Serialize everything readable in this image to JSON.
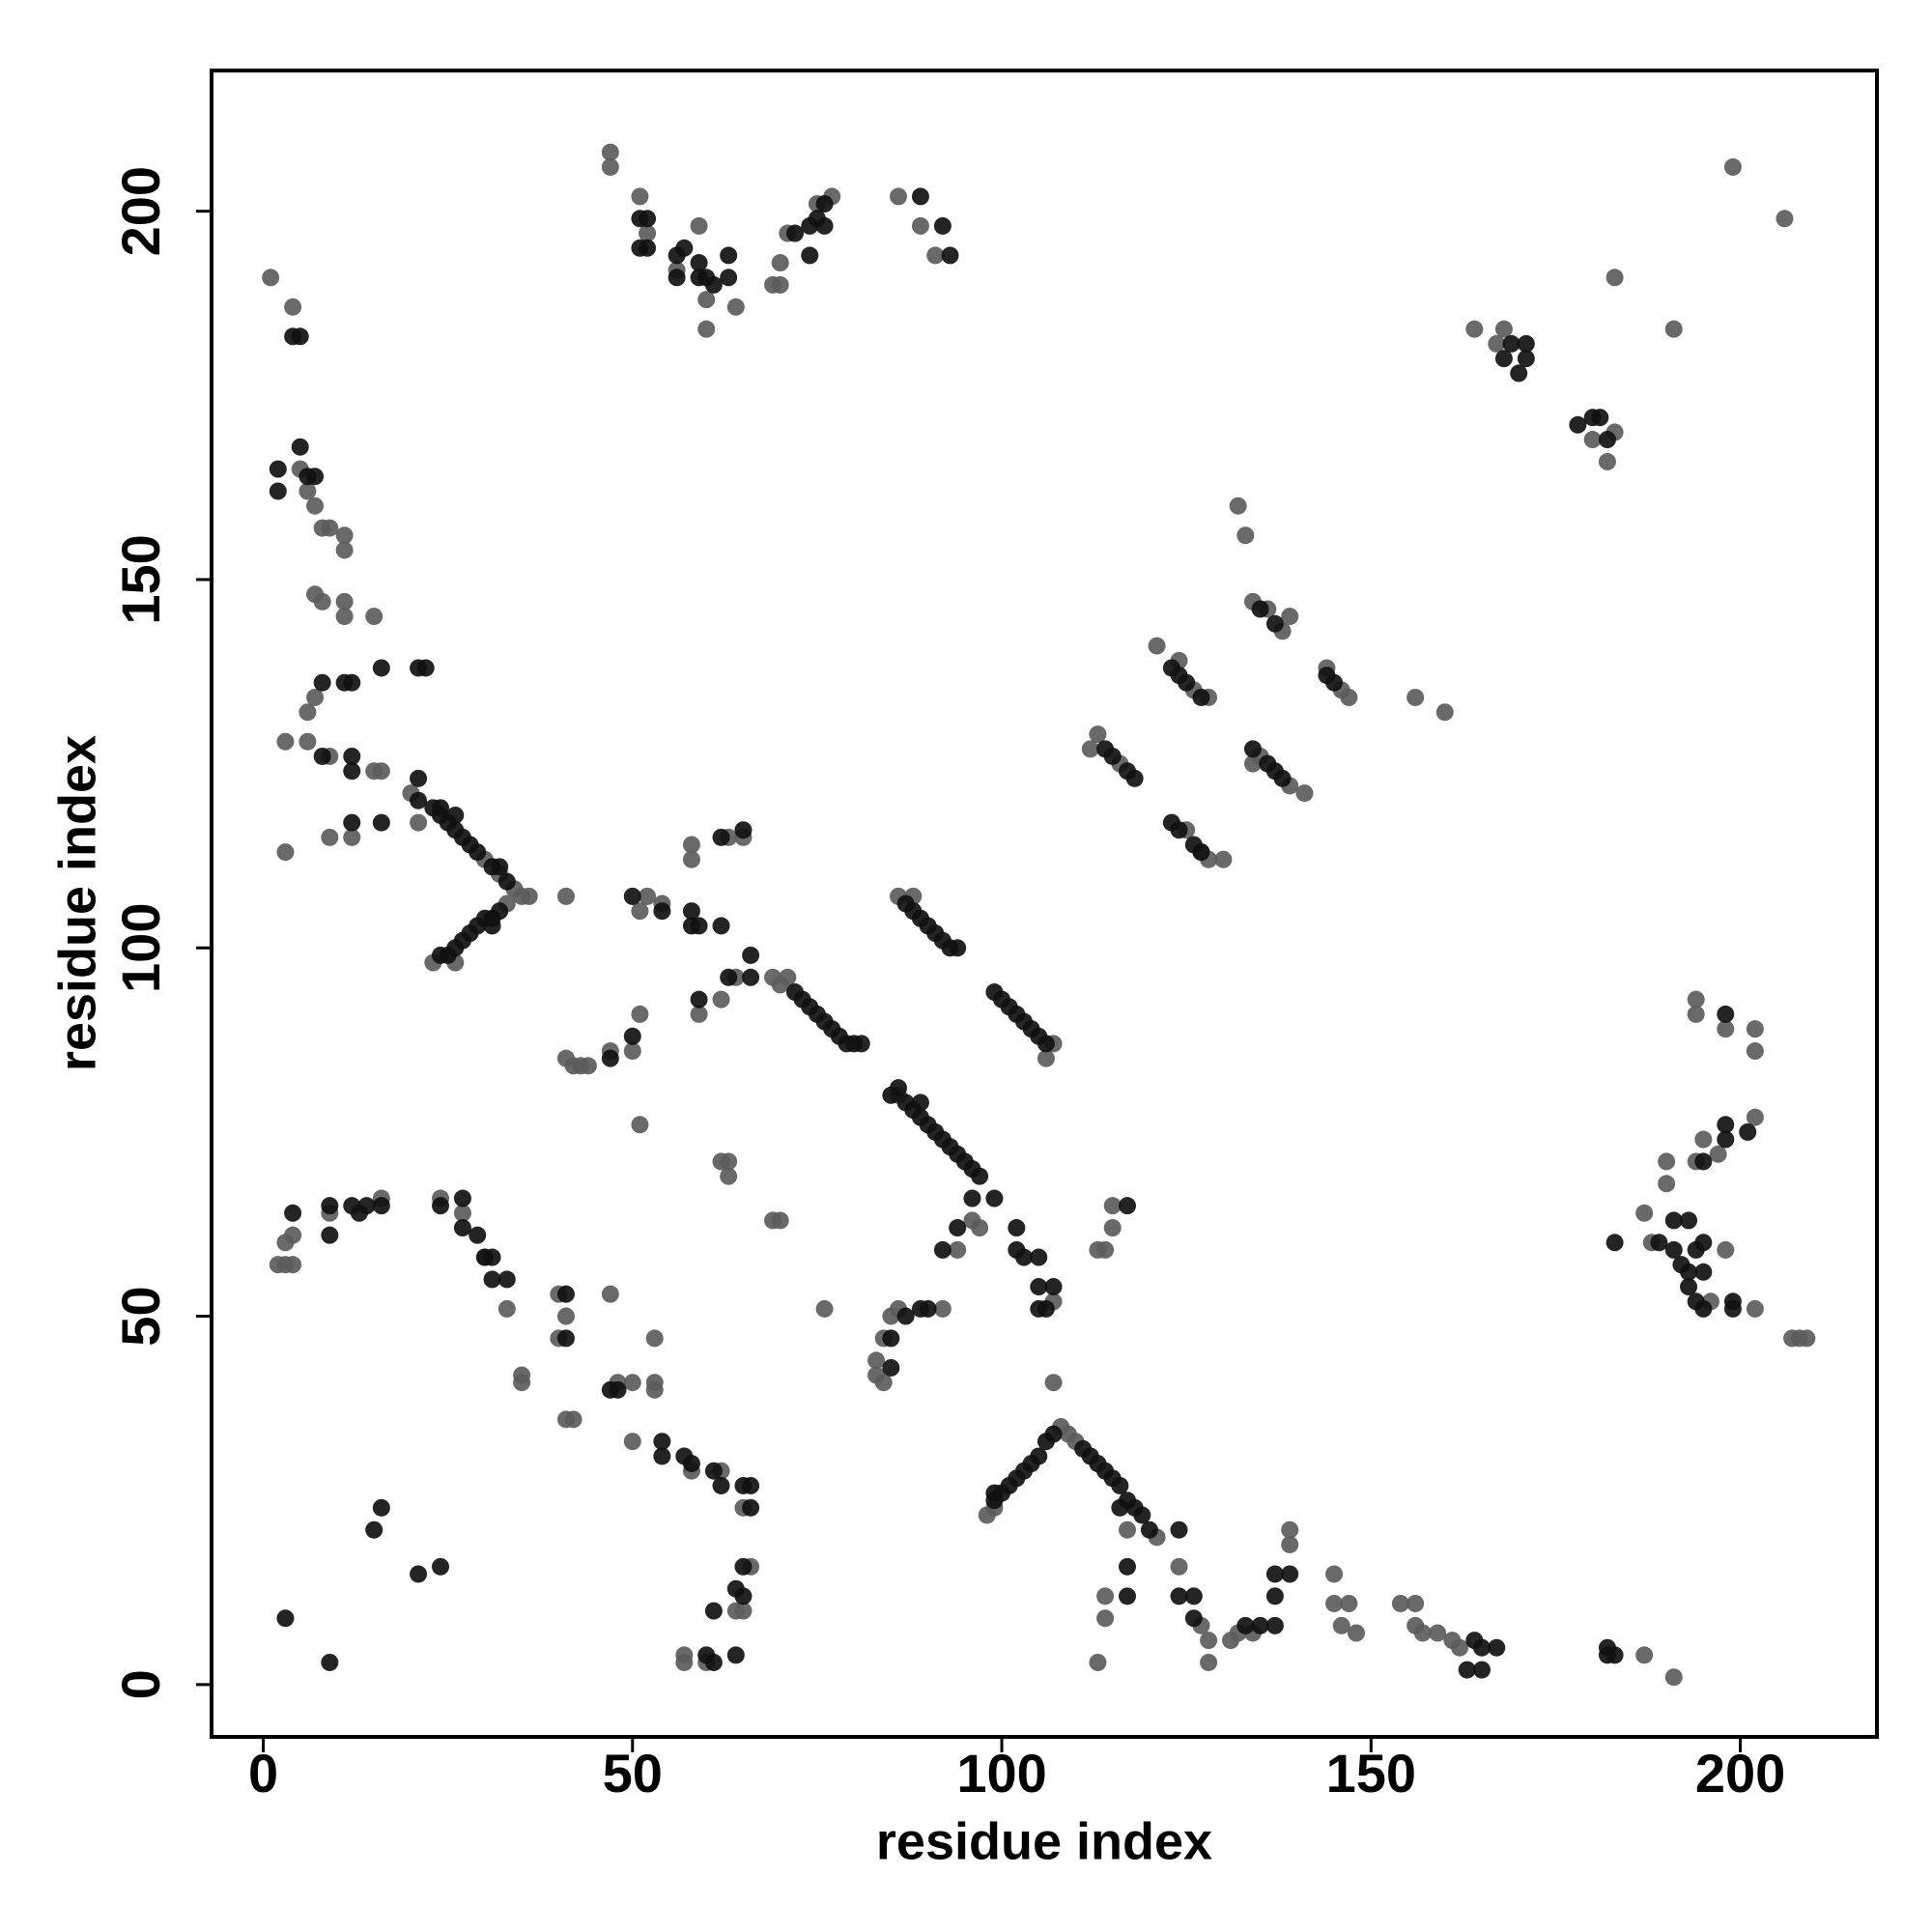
{
  "chart_data": {
    "type": "scatter",
    "xlabel": "residue index",
    "ylabel": "residue index",
    "xlim": [
      -7,
      218.5
    ],
    "ylim": [
      -7.1,
      219.1
    ],
    "xticks": [
      0,
      50,
      100,
      150,
      200
    ],
    "yticks": [
      0,
      50,
      100,
      150,
      200
    ],
    "series": [
      {
        "color": "#5c5c5c",
        "x": [
          47,
          47,
          51,
          52,
          56,
          59,
          60,
          60,
          64,
          69,
          70,
          70,
          71,
          75,
          77,
          86,
          89,
          91,
          1,
          4,
          199,
          206,
          183,
          191,
          164,
          167,
          168,
          180,
          182,
          183,
          5,
          6,
          7,
          8,
          9,
          11,
          11,
          7,
          8,
          11,
          11,
          15,
          132,
          133,
          134,
          136,
          138,
          139,
          121,
          124,
          126,
          128,
          144,
          146,
          147,
          156,
          160,
          112,
          113,
          116,
          134,
          135,
          139,
          141,
          125,
          127,
          128,
          130,
          6,
          7,
          3,
          6,
          9,
          15,
          16,
          3,
          9,
          12,
          20,
          21,
          30,
          32,
          34,
          35,
          36,
          41,
          23,
          26,
          33,
          51,
          52,
          54,
          58,
          58,
          63,
          65,
          59,
          62,
          64,
          69,
          71,
          70,
          86,
          88,
          106,
          107,
          41,
          42,
          43,
          44,
          47,
          50,
          51,
          51,
          86,
          96,
          97,
          94,
          63,
          63,
          62,
          69,
          70,
          76,
          107,
          113,
          114,
          115,
          115,
          2,
          3,
          4,
          3,
          4,
          9,
          16,
          24,
          27,
          33,
          30,
          40,
          41,
          40,
          35,
          35,
          41,
          42,
          47,
          53,
          48,
          50,
          53,
          53,
          50,
          58,
          62,
          65,
          66,
          64,
          65,
          57,
          57,
          60,
          83,
          83,
          84,
          84,
          85,
          86,
          92,
          98,
          99,
          107,
          108,
          109,
          110,
          113,
          114,
          114,
          117,
          121,
          124,
          127,
          128,
          128,
          131,
          132,
          134,
          139,
          139,
          145,
          145,
          146,
          147,
          148,
          154,
          156,
          156,
          157,
          159,
          161,
          162,
          187,
          191,
          187,
          188,
          190,
          190,
          194,
          195,
          197,
          194,
          194,
          198,
          198,
          196,
          202,
          202,
          202,
          202,
          207,
          208,
          209
        ],
        "values": [
          208,
          206,
          202,
          197,
          192,
          198,
          188,
          184,
          187,
          190,
          190,
          193,
          197,
          201,
          202,
          202,
          198,
          194,
          191,
          187,
          206,
          199,
          191,
          184,
          184,
          182,
          184,
          169,
          166,
          170,
          165,
          162,
          160,
          157,
          157,
          156,
          154,
          148,
          147,
          147,
          145,
          145,
          160,
          156,
          147,
          146,
          143,
          145,
          141,
          139,
          135,
          134,
          138,
          135,
          134,
          134,
          132,
          127,
          129,
          125,
          125,
          126,
          122,
          121,
          116,
          113,
          112,
          112,
          132,
          134,
          128,
          128,
          126,
          124,
          124,
          113,
          115,
          115,
          121,
          117,
          112,
          110,
          108,
          107,
          107,
          107,
          98,
          98,
          106,
          105,
          107,
          106,
          114,
          112,
          115,
          115,
          91,
          93,
          96,
          96,
          96,
          95,
          107,
          107,
          85,
          87,
          85,
          84,
          84,
          84,
          86,
          86,
          91,
          76,
          80,
          63,
          62,
          59,
          71,
          69,
          71,
          63,
          63,
          51,
          52,
          59,
          59,
          65,
          62,
          57,
          57,
          57,
          60,
          61,
          64,
          66,
          66,
          64,
          51,
          58,
          53,
          50,
          47,
          42,
          41,
          36,
          36,
          53,
          47,
          41,
          41,
          40,
          41,
          33,
          29,
          29,
          24,
          16,
          10,
          10,
          4,
          3,
          3,
          44,
          42,
          41,
          47,
          50,
          51,
          51,
          23,
          24,
          41,
          35,
          34,
          33,
          3,
          9,
          12,
          21,
          20,
          16,
          8,
          6,
          3,
          6,
          7,
          7,
          19,
          21,
          15,
          11,
          8,
          11,
          7,
          11,
          11,
          8,
          7,
          7,
          6,
          5,
          4,
          1,
          64,
          60,
          68,
          71,
          71,
          74,
          72,
          91,
          93,
          89,
          59,
          52,
          51,
          86,
          77,
          89,
          47,
          47,
          47
        ]
      },
      {
        "color": "#111111",
        "x": [
          51,
          51,
          52,
          52,
          56,
          56,
          57,
          59,
          59,
          60,
          61,
          63,
          63,
          72,
          74,
          74,
          75,
          76,
          76,
          89,
          92,
          93,
          4,
          5,
          168,
          169,
          170,
          171,
          171,
          178,
          180,
          181,
          182,
          2,
          2,
          5,
          6,
          7,
          135,
          137,
          123,
          124,
          125,
          127,
          144,
          145,
          114,
          115,
          117,
          118,
          134,
          136,
          137,
          138,
          123,
          124,
          126,
          127,
          8,
          11,
          12,
          16,
          21,
          22,
          8,
          12,
          12,
          12,
          16,
          21,
          21,
          23,
          24,
          24,
          25,
          26,
          26,
          27,
          28,
          29,
          31,
          32,
          33,
          24,
          25,
          26,
          27,
          28,
          29,
          30,
          31,
          31,
          32,
          50,
          54,
          58,
          58,
          59,
          62,
          62,
          65,
          66,
          66,
          59,
          63,
          72,
          73,
          74,
          75,
          76,
          77,
          78,
          79,
          80,
          81,
          87,
          88,
          89,
          90,
          91,
          92,
          93,
          94,
          99,
          100,
          101,
          102,
          103,
          104,
          105,
          106,
          47,
          50,
          85,
          86,
          87,
          88,
          89,
          89,
          90,
          91,
          92,
          93,
          94,
          95,
          96,
          97,
          96,
          99,
          92,
          94,
          102,
          102,
          103,
          105,
          105,
          105,
          106,
          107,
          117,
          4,
          9,
          9,
          12,
          14,
          13,
          16,
          24,
          27,
          27,
          29,
          30,
          31,
          31,
          33,
          41,
          41,
          47,
          48,
          54,
          54,
          57,
          58,
          61,
          62,
          65,
          66,
          66,
          65,
          64,
          65,
          61,
          60,
          61,
          64,
          3,
          9,
          15,
          16,
          21,
          24,
          85,
          85,
          87,
          89,
          90,
          99,
          99,
          100,
          101,
          102,
          103,
          104,
          105,
          106,
          107,
          111,
          112,
          113,
          114,
          115,
          116,
          116,
          117,
          118,
          119,
          120,
          117,
          117,
          124,
          124,
          126,
          126,
          133,
          135,
          137,
          137,
          137,
          139,
          163,
          164,
          165,
          165,
          167,
          182,
          182,
          183,
          191,
          191,
          192,
          193,
          193,
          194,
          195,
          195,
          195,
          194,
          195,
          198,
          198,
          199,
          199,
          201,
          183,
          193,
          198,
          189
        ],
        "values": [
          199,
          195,
          195,
          199,
          194,
          191,
          195,
          193,
          191,
          191,
          190,
          191,
          194,
          197,
          194,
          198,
          199,
          198,
          201,
          202,
          198,
          194,
          183,
          183,
          180,
          182,
          178,
          180,
          182,
          171,
          172,
          172,
          169,
          165,
          162,
          168,
          164,
          164,
          146,
          144,
          138,
          137,
          136,
          134,
          137,
          136,
          127,
          126,
          124,
          123,
          127,
          125,
          124,
          123,
          117,
          116,
          114,
          113,
          136,
          136,
          136,
          138,
          138,
          138,
          126,
          126,
          124,
          117,
          117,
          120,
          123,
          119,
          118,
          119,
          117,
          116,
          118,
          115,
          114,
          113,
          111,
          111,
          109,
          99,
          99,
          100,
          101,
          102,
          103,
          104,
          104,
          103,
          105,
          107,
          105,
          105,
          103,
          103,
          103,
          115,
          116,
          99,
          96,
          93,
          96,
          94,
          93,
          92,
          91,
          90,
          89,
          88,
          87,
          87,
          87,
          106,
          105,
          104,
          103,
          102,
          101,
          100,
          100,
          94,
          93,
          92,
          91,
          90,
          89,
          88,
          87,
          85,
          88,
          80,
          81,
          79,
          78,
          77,
          79,
          76,
          75,
          74,
          73,
          72,
          71,
          70,
          69,
          66,
          66,
          59,
          62,
          62,
          59,
          58,
          58,
          54,
          51,
          51,
          54,
          65,
          64,
          61,
          65,
          65,
          65,
          64,
          65,
          65,
          66,
          62,
          61,
          58,
          58,
          55,
          55,
          53,
          47,
          40,
          40,
          33,
          31,
          31,
          30,
          29,
          27,
          27,
          27,
          24,
          16,
          13,
          12,
          10,
          4,
          3,
          4,
          9,
          3,
          21,
          24,
          15,
          16,
          43,
          47,
          50,
          51,
          51,
          25,
          26,
          26,
          27,
          28,
          29,
          30,
          31,
          33,
          34,
          32,
          31,
          30,
          29,
          28,
          27,
          24,
          25,
          24,
          23,
          21,
          12,
          16,
          21,
          12,
          12,
          9,
          8,
          8,
          8,
          12,
          15,
          15,
          2,
          6,
          5,
          2,
          5,
          5,
          4,
          4,
          63,
          59,
          57,
          56,
          63,
          59,
          71,
          60,
          56,
          52,
          51,
          74,
          76,
          52,
          51,
          75,
          60,
          54,
          91,
          60
        ]
      }
    ]
  }
}
